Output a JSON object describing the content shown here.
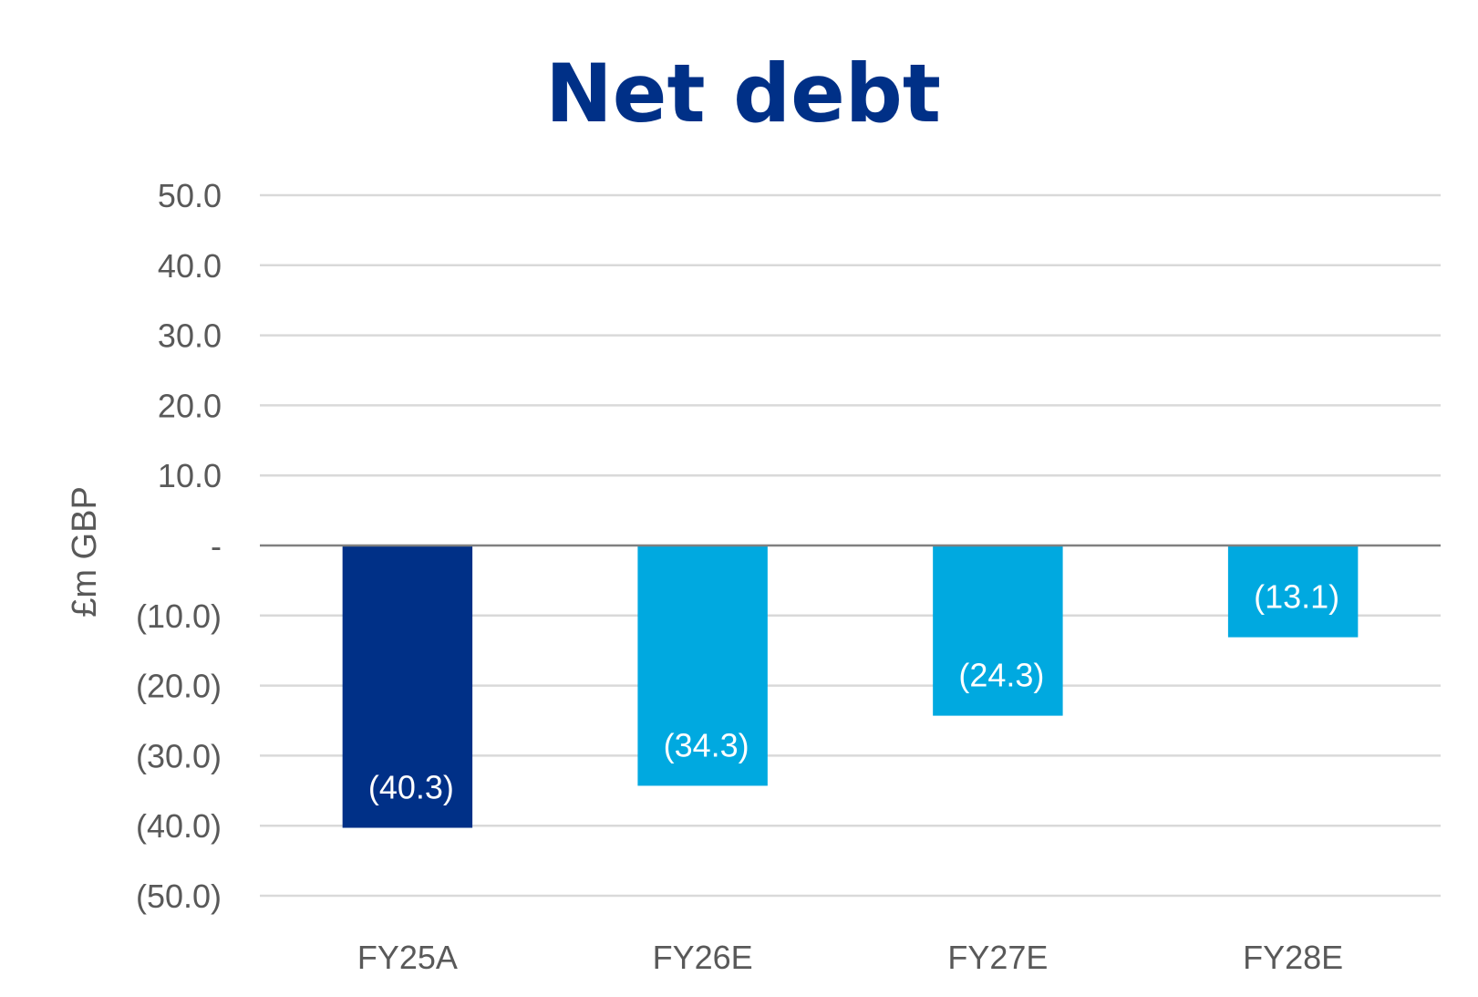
{
  "chart_data": {
    "type": "bar",
    "title": "Net debt",
    "ylabel": "£m GBP",
    "xlabel": "",
    "categories": [
      "FY25A",
      "FY26E",
      "FY27E",
      "FY28E"
    ],
    "values": [
      -40.3,
      -34.3,
      -24.3,
      -13.1
    ],
    "data_labels": [
      "(40.3)",
      "(34.3)",
      "(24.3)",
      "(13.1)"
    ],
    "bar_colors": [
      "#003087",
      "#00a9e0",
      "#00a9e0",
      "#00a9e0"
    ],
    "ylim": [
      -50,
      50
    ],
    "yticks": [
      50,
      40,
      30,
      20,
      10,
      0,
      -10,
      -20,
      -30,
      -40,
      -50
    ],
    "ytick_labels": [
      "50.0",
      "40.0",
      "30.0",
      "20.0",
      "10.0",
      "-",
      "(10.0)",
      "(20.0)",
      "(30.0)",
      "(40.0)",
      "(50.0)"
    ],
    "grid": true,
    "legend": "none",
    "colors": {
      "title": "#003087",
      "text": "#595959",
      "grid": "#d9d9d9",
      "zero_line": "#808080"
    }
  }
}
